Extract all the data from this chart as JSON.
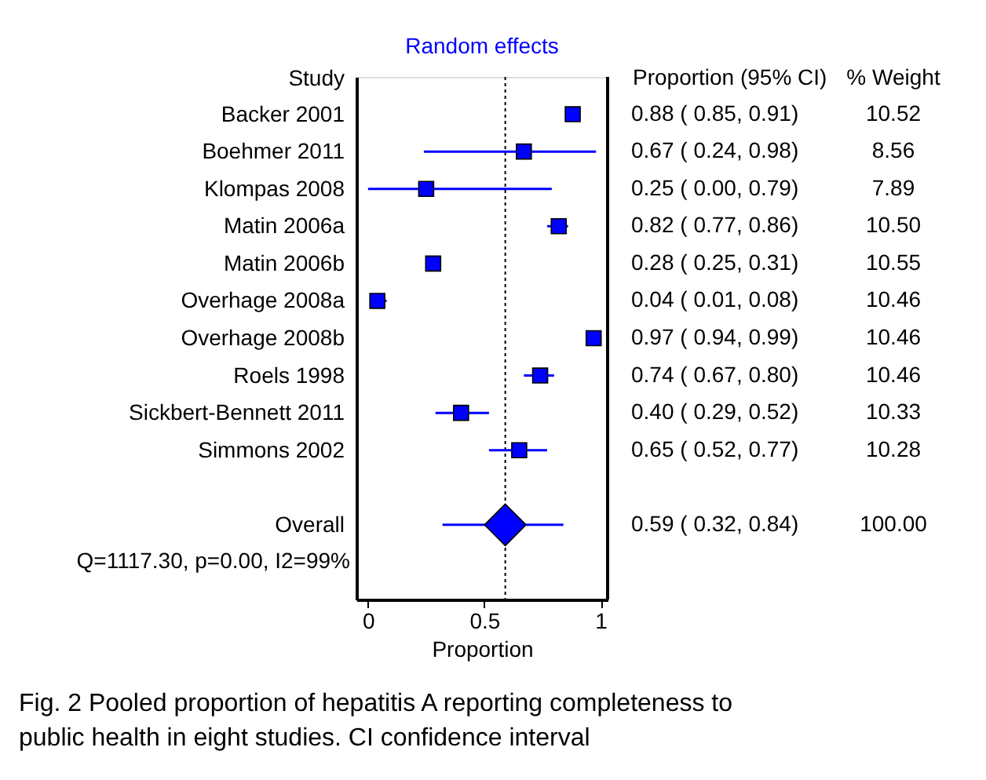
{
  "chart_data": {
    "type": "scatter",
    "orientation": "horizontal",
    "title": "Random effects",
    "ylabel": "Study",
    "xlabel": "Proportion",
    "categories": [
      "Backer 2001",
      "Boehmer 2011",
      "Klompas 2008",
      "Matin 2006a",
      "Matin 2006b",
      "Overhage 2008a",
      "Overhage 2008b",
      "Roels 1998",
      "Sickbert-Bennett 2011",
      "Simmons 2002",
      null,
      "Overall",
      null
    ],
    "series": [
      {
        "type": "scatter",
        "marker": "square",
        "color": "#0000ff",
        "values": [
          0.88,
          0.67,
          0.25,
          0.82,
          0.28,
          0.04,
          0.97,
          0.74,
          0.4,
          0.65,
          null,
          null,
          null
        ],
        "errors": [
          [
            0.85,
            0.91
          ],
          [
            0.24,
            0.98
          ],
          [
            0.0,
            0.79
          ],
          [
            0.77,
            0.86
          ],
          [
            0.25,
            0.31
          ],
          [
            0.01,
            0.08
          ],
          [
            0.94,
            0.99
          ],
          [
            0.67,
            0.8
          ],
          [
            0.29,
            0.52
          ],
          [
            0.52,
            0.77
          ],
          null,
          null,
          null
        ],
        "value_labels": [
          "0.88 ( 0.85, 0.91)",
          "0.67 ( 0.24, 0.98)",
          "0.25 ( 0.00, 0.79)",
          "0.82 ( 0.77, 0.86)",
          "0.28 ( 0.25, 0.31)",
          "0.04 ( 0.01, 0.08)",
          "0.97 ( 0.94, 0.99)",
          "0.74 ( 0.67, 0.80)",
          "0.40 ( 0.29, 0.52)",
          "0.65 ( 0.52, 0.77)",
          null,
          null,
          null
        ]
      },
      {
        "type": "scatter",
        "marker": "diamond",
        "color": "#0000ff",
        "values": [
          null,
          null,
          null,
          null,
          null,
          null,
          null,
          null,
          null,
          null,
          null,
          0.59,
          null
        ],
        "errors": [
          null,
          null,
          null,
          null,
          null,
          null,
          null,
          null,
          null,
          null,
          null,
          [
            0.32,
            0.84
          ],
          null
        ]
      }
    ],
    "xlim": [
      -0.05,
      1.03
    ],
    "xticks": [
      0,
      0.5,
      1
    ],
    "ref_lines": [
      {
        "axis": "x",
        "value": 0.59,
        "color": "#000000",
        "line_style": "dotted"
      }
    ],
    "grid": false,
    "annotations": [
      "Proportion (95% CI)",
      "% Weight",
      "Q=1117.30, p=0.00, I2=99%",
      "Fig. 2 Pooled proportion of hepatitis A reporting completeness to public health in eight studies. CI confidence interval",
      "0.59 ( 0.32, 0.84)",
      "10.52",
      "8.56",
      "7.89",
      "10.50",
      "10.55",
      "10.46",
      "10.46",
      "10.46",
      "10.33",
      "10.28",
      "100.00"
    ]
  }
}
